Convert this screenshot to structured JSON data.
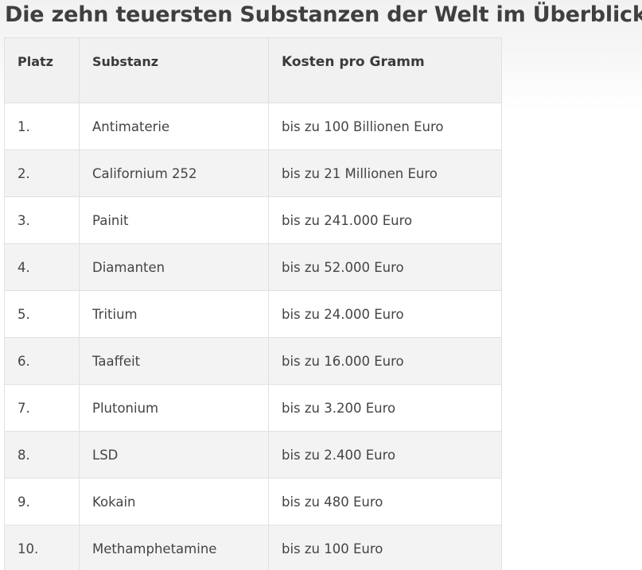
{
  "title": "Die zehn teuersten Substanzen der Welt im Überblick",
  "table": {
    "headers": {
      "rank": "Platz",
      "substance": "Substanz",
      "cost": "Kosten pro Gramm"
    },
    "rows": [
      {
        "rank": "1.",
        "substance": "Antimaterie",
        "cost": "bis zu 100 Billionen Euro"
      },
      {
        "rank": "2.",
        "substance": "Californium 252",
        "cost": "bis zu 21 Millionen Euro"
      },
      {
        "rank": "3.",
        "substance": "Painit",
        "cost": "bis zu 241.000 Euro"
      },
      {
        "rank": "4.",
        "substance": "Diamanten",
        "cost": "bis zu 52.000 Euro"
      },
      {
        "rank": "5.",
        "substance": "Tritium",
        "cost": "bis zu 24.000 Euro"
      },
      {
        "rank": "6.",
        "substance": "Taaffeit",
        "cost": "bis zu 16.000 Euro"
      },
      {
        "rank": "7.",
        "substance": "Plutonium",
        "cost": "bis zu 3.200 Euro"
      },
      {
        "rank": "8.",
        "substance": "LSD",
        "cost": "bis zu 2.400 Euro"
      },
      {
        "rank": "9.",
        "substance": "Kokain",
        "cost": "bis zu 480 Euro"
      },
      {
        "rank": "10.",
        "substance": "Methamphetamine",
        "cost": "bis zu 100 Euro"
      }
    ]
  }
}
